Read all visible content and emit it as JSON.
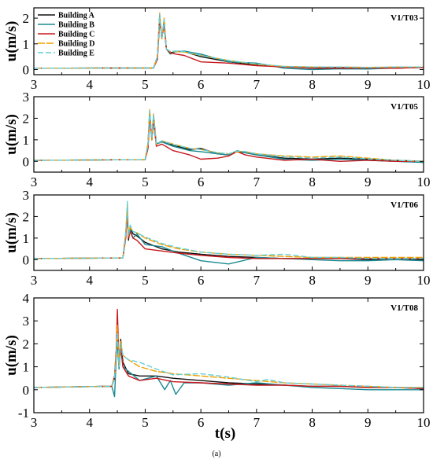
{
  "figure": {
    "xlabel": "t(s)",
    "caption": "(a)",
    "colors": {
      "Building A": "#111111",
      "Building B": "#1a8a92",
      "Building C": "#c8181c",
      "Building D": "#f0a000",
      "Building E": "#63cfd6"
    }
  },
  "chart_data": [
    {
      "type": "line",
      "title": "V1/T03",
      "ylabel": "u(m/s)",
      "xlim": [
        3,
        10
      ],
      "ylim": [
        -0.2,
        2.4
      ],
      "xticks": [
        3,
        4,
        5,
        6,
        7,
        8,
        9,
        10
      ],
      "yticks": [
        0,
        1,
        2
      ],
      "legend": [
        "Building A",
        "Building B",
        "Building C",
        "Building D",
        "Building E"
      ],
      "legend_position": "top-left",
      "grid": false,
      "series": [
        {
          "name": "Building A",
          "x": [
            3,
            5.15,
            5.22,
            5.26,
            5.3,
            5.34,
            5.38,
            5.45,
            5.55,
            5.7,
            6,
            6.5,
            7,
            7.5,
            8,
            8.5,
            9,
            9.5,
            10
          ],
          "y": [
            0.05,
            0.06,
            0.5,
            2.1,
            1.2,
            1.9,
            0.8,
            0.65,
            0.7,
            0.7,
            0.5,
            0.3,
            0.18,
            0.1,
            0.06,
            0.08,
            0.05,
            0.06,
            0.08
          ]
        },
        {
          "name": "Building B",
          "x": [
            3,
            5.15,
            5.22,
            5.26,
            5.3,
            5.34,
            5.38,
            5.45,
            5.55,
            5.7,
            6,
            6.5,
            7,
            7.5,
            8,
            8.5,
            9,
            9.5,
            10
          ],
          "y": [
            0.05,
            0.06,
            0.5,
            2.0,
            1.3,
            1.8,
            0.8,
            0.6,
            0.7,
            0.72,
            0.6,
            0.3,
            0.25,
            0.05,
            0.0,
            0.03,
            0.02,
            0.06,
            0.08
          ]
        },
        {
          "name": "Building C",
          "x": [
            3,
            5.15,
            5.22,
            5.26,
            5.3,
            5.34,
            5.38,
            5.45,
            5.55,
            5.7,
            6,
            6.5,
            7,
            7.5,
            8,
            8.5,
            9,
            9.5,
            10
          ],
          "y": [
            0.05,
            0.06,
            0.4,
            1.9,
            1.3,
            1.7,
            0.8,
            0.65,
            0.6,
            0.55,
            0.3,
            0.25,
            0.15,
            0.1,
            0.05,
            0.05,
            0.06,
            0.05,
            0.08
          ]
        },
        {
          "name": "Building D",
          "x": [
            3,
            5.15,
            5.22,
            5.26,
            5.3,
            5.34,
            5.38,
            5.45,
            5.55,
            5.7,
            6,
            6.5,
            7,
            7.5,
            8,
            8.5,
            9,
            9.5,
            10
          ],
          "y": [
            0.05,
            0.06,
            0.5,
            2.2,
            1.2,
            2.0,
            0.8,
            0.7,
            0.7,
            0.68,
            0.55,
            0.35,
            0.2,
            0.12,
            0.1,
            0.1,
            0.08,
            0.1,
            0.1
          ]
        },
        {
          "name": "Building E",
          "x": [
            3,
            5.15,
            5.22,
            5.26,
            5.3,
            5.34,
            5.38,
            5.45,
            5.55,
            5.7,
            6,
            6.5,
            7,
            7.5,
            8,
            8.5,
            9,
            9.5,
            10
          ],
          "y": [
            0.05,
            0.06,
            0.5,
            2.15,
            1.25,
            1.95,
            0.8,
            0.7,
            0.72,
            0.7,
            0.55,
            0.35,
            0.22,
            0.12,
            0.1,
            0.1,
            0.08,
            0.1,
            0.1
          ]
        }
      ]
    },
    {
      "type": "line",
      "title": "V1/T05",
      "ylabel": "u(m/s)",
      "xlim": [
        3,
        10
      ],
      "ylim": [
        -0.5,
        3
      ],
      "xticks": [
        3,
        4,
        5,
        6,
        7,
        8,
        9,
        10
      ],
      "yticks": [
        0,
        1,
        2,
        3
      ],
      "grid": false,
      "series": [
        {
          "name": "Building A",
          "x": [
            3,
            5.0,
            5.05,
            5.08,
            5.12,
            5.15,
            5.2,
            5.3,
            5.5,
            5.8,
            6.0,
            6.3,
            6.5,
            6.65,
            6.8,
            7.0,
            7.5,
            8.0,
            8.5,
            9.0,
            9.5,
            10
          ],
          "y": [
            0.05,
            0.08,
            0.8,
            2.3,
            1.0,
            2.1,
            0.8,
            0.95,
            0.75,
            0.55,
            0.6,
            0.35,
            0.3,
            0.45,
            0.4,
            0.3,
            0.15,
            0.1,
            0.15,
            0.1,
            0.05,
            0.0
          ]
        },
        {
          "name": "Building B",
          "x": [
            3,
            5.0,
            5.05,
            5.08,
            5.12,
            5.15,
            5.2,
            5.3,
            5.5,
            5.8,
            6.0,
            6.3,
            6.5,
            6.65,
            6.8,
            7.0,
            7.5,
            8.0,
            8.5,
            9.0,
            9.5,
            10
          ],
          "y": [
            0.05,
            0.08,
            0.7,
            2.1,
            1.1,
            2.0,
            0.8,
            0.9,
            0.7,
            0.5,
            0.45,
            0.35,
            0.3,
            0.5,
            0.4,
            0.3,
            0.1,
            0.05,
            0.1,
            0.05,
            0.0,
            -0.05
          ]
        },
        {
          "name": "Building C",
          "x": [
            3,
            5.0,
            5.05,
            5.08,
            5.12,
            5.15,
            5.2,
            5.3,
            5.5,
            5.8,
            6.0,
            6.3,
            6.5,
            6.65,
            6.8,
            7.0,
            7.5,
            8.0,
            8.5,
            9.0,
            9.5,
            10
          ],
          "y": [
            0.05,
            0.08,
            0.6,
            2.0,
            1.0,
            1.9,
            0.7,
            0.8,
            0.5,
            0.3,
            0.1,
            0.15,
            0.25,
            0.45,
            0.3,
            0.2,
            0.05,
            0.1,
            0.0,
            0.05,
            0.0,
            0.0
          ]
        },
        {
          "name": "Building D",
          "x": [
            3,
            5.0,
            5.05,
            5.08,
            5.12,
            5.15,
            5.2,
            5.3,
            5.5,
            5.8,
            6.0,
            6.3,
            6.5,
            6.65,
            6.8,
            7.0,
            7.5,
            8.0,
            8.5,
            9.0,
            9.5,
            10
          ],
          "y": [
            0.05,
            0.08,
            0.8,
            2.4,
            1.0,
            2.2,
            0.8,
            0.95,
            0.8,
            0.6,
            0.55,
            0.4,
            0.35,
            0.45,
            0.45,
            0.35,
            0.25,
            0.2,
            0.25,
            0.15,
            0.05,
            0.0
          ]
        },
        {
          "name": "Building E",
          "x": [
            3,
            5.0,
            5.05,
            5.08,
            5.12,
            5.15,
            5.2,
            5.3,
            5.5,
            5.8,
            6.0,
            6.3,
            6.5,
            6.65,
            6.8,
            7.0,
            7.5,
            8.0,
            8.5,
            9.0,
            9.5,
            10
          ],
          "y": [
            0.05,
            0.08,
            0.8,
            2.35,
            1.05,
            2.15,
            0.8,
            0.95,
            0.78,
            0.6,
            0.55,
            0.4,
            0.35,
            0.48,
            0.45,
            0.35,
            0.22,
            0.15,
            0.2,
            0.12,
            0.05,
            0.0
          ]
        }
      ]
    },
    {
      "type": "line",
      "title": "V1/T06",
      "ylabel": "u(m/s)",
      "xlim": [
        3,
        10
      ],
      "ylim": [
        -0.5,
        3
      ],
      "xticks": [
        3,
        4,
        5,
        6,
        7,
        8,
        9,
        10
      ],
      "yticks": [
        0,
        1,
        2,
        3
      ],
      "grid": false,
      "series": [
        {
          "name": "Building A",
          "x": [
            3,
            4.6,
            4.65,
            4.68,
            4.7,
            4.73,
            4.78,
            4.85,
            5.0,
            5.3,
            5.6,
            6.0,
            6.5,
            7.0,
            7.5,
            8.0,
            8.5,
            9.0,
            9.5,
            10
          ],
          "y": [
            0.05,
            0.08,
            1.2,
            2.3,
            0.9,
            1.5,
            1.2,
            1.1,
            0.8,
            0.5,
            0.35,
            0.25,
            0.15,
            0.1,
            0.05,
            0.05,
            0.05,
            0.0,
            0.0,
            0.0
          ]
        },
        {
          "name": "Building B",
          "x": [
            3,
            4.6,
            4.65,
            4.68,
            4.7,
            4.73,
            4.78,
            4.85,
            5.0,
            5.3,
            5.6,
            6.0,
            6.5,
            7.0,
            7.5,
            8.0,
            8.5,
            9.0,
            9.5,
            10
          ],
          "y": [
            0.05,
            0.08,
            1.1,
            2.2,
            1.0,
            1.4,
            1.0,
            1.2,
            0.7,
            0.6,
            0.3,
            -0.05,
            -0.2,
            0.1,
            0.05,
            0.0,
            -0.05,
            -0.05,
            0.0,
            -0.05
          ]
        },
        {
          "name": "Building C",
          "x": [
            3,
            4.6,
            4.65,
            4.68,
            4.7,
            4.73,
            4.78,
            4.85,
            5.0,
            5.3,
            5.6,
            6.0,
            6.5,
            7.0,
            7.5,
            8.0,
            8.5,
            9.0,
            9.5,
            10
          ],
          "y": [
            0.05,
            0.08,
            1.0,
            2.1,
            1.0,
            1.3,
            1.0,
            0.9,
            0.5,
            0.4,
            0.3,
            0.2,
            0.1,
            0.05,
            0.05,
            0.05,
            0.05,
            0.05,
            0.05,
            0.05
          ]
        },
        {
          "name": "Building D",
          "x": [
            3,
            4.6,
            4.65,
            4.68,
            4.7,
            4.73,
            4.78,
            4.85,
            5.0,
            5.3,
            5.6,
            6.0,
            6.5,
            7.0,
            7.5,
            8.0,
            8.5,
            9.0,
            9.5,
            10
          ],
          "y": [
            0.05,
            0.08,
            1.2,
            2.6,
            1.1,
            1.5,
            1.3,
            1.25,
            1.0,
            0.7,
            0.5,
            0.35,
            0.25,
            0.2,
            0.15,
            0.1,
            0.1,
            0.1,
            0.1,
            0.1
          ]
        },
        {
          "name": "Building E",
          "x": [
            3,
            4.6,
            4.65,
            4.68,
            4.7,
            4.73,
            4.78,
            4.85,
            5.0,
            5.3,
            5.6,
            6.0,
            6.5,
            7.0,
            7.5,
            8.0,
            8.5,
            9.0,
            9.5,
            10
          ],
          "y": [
            0.05,
            0.08,
            1.2,
            2.7,
            1.1,
            1.6,
            1.3,
            1.25,
            1.05,
            0.75,
            0.55,
            0.35,
            0.25,
            0.2,
            0.25,
            0.1,
            0.1,
            0.05,
            0.05,
            0.05
          ]
        }
      ]
    },
    {
      "type": "line",
      "title": "V1/T08",
      "ylabel": "u(m/s)",
      "xlim": [
        3,
        10
      ],
      "ylim": [
        -1,
        4
      ],
      "xticks": [
        3,
        4,
        5,
        6,
        7,
        8,
        9,
        10
      ],
      "yticks": [
        -1,
        0,
        1,
        2,
        3,
        4
      ],
      "grid": false,
      "series": [
        {
          "name": "Building A",
          "x": [
            3,
            4.4,
            4.45,
            4.48,
            4.5,
            4.53,
            4.56,
            4.6,
            4.7,
            4.9,
            5.2,
            5.5,
            6.0,
            6.5,
            7.0,
            7.5,
            8.0,
            8.5,
            9.0,
            9.5,
            10
          ],
          "y": [
            0.1,
            0.15,
            0.5,
            1.5,
            2.0,
            1.0,
            2.2,
            1.2,
            0.7,
            0.6,
            0.6,
            0.5,
            0.4,
            0.3,
            0.25,
            0.2,
            0.15,
            0.15,
            0.1,
            0.1,
            0.05
          ]
        },
        {
          "name": "Building B",
          "x": [
            3,
            4.4,
            4.45,
            4.48,
            4.5,
            4.53,
            4.56,
            4.6,
            4.7,
            4.9,
            5.2,
            5.35,
            5.45,
            5.55,
            5.7,
            6.0,
            6.5,
            7.0,
            7.5,
            8.0,
            8.5,
            9.0,
            9.5,
            10
          ],
          "y": [
            0.1,
            0.15,
            -0.3,
            1.4,
            2.2,
            0.9,
            1.8,
            1.0,
            0.8,
            0.4,
            0.6,
            0.0,
            0.4,
            -0.2,
            0.3,
            0.3,
            0.2,
            0.3,
            0.2,
            0.1,
            0.05,
            0.0,
            0.0,
            0.0
          ]
        },
        {
          "name": "Building C",
          "x": [
            3,
            4.4,
            4.45,
            4.48,
            4.5,
            4.53,
            4.56,
            4.6,
            4.7,
            4.9,
            5.2,
            5.5,
            6.0,
            6.5,
            7.0,
            7.5,
            8.0,
            8.5,
            9.0,
            9.5,
            10
          ],
          "y": [
            0.1,
            0.15,
            0.6,
            1.8,
            3.5,
            1.0,
            2.0,
            1.0,
            0.6,
            0.4,
            0.5,
            0.35,
            0.3,
            0.25,
            0.2,
            0.2,
            0.15,
            0.15,
            0.1,
            0.1,
            0.05
          ]
        },
        {
          "name": "Building D",
          "x": [
            3,
            4.4,
            4.45,
            4.48,
            4.5,
            4.53,
            4.56,
            4.6,
            4.7,
            4.9,
            5.2,
            5.5,
            6.0,
            6.5,
            7.0,
            7.5,
            8.0,
            8.5,
            9.0,
            9.5,
            10
          ],
          "y": [
            0.1,
            0.15,
            0.5,
            1.6,
            2.8,
            1.0,
            2.1,
            1.5,
            1.3,
            1.0,
            0.8,
            0.7,
            0.6,
            0.5,
            0.4,
            0.3,
            0.25,
            0.2,
            0.15,
            0.1,
            0.1
          ]
        },
        {
          "name": "Building E",
          "x": [
            3,
            4.4,
            4.45,
            4.48,
            4.5,
            4.53,
            4.56,
            4.6,
            4.7,
            4.9,
            5.2,
            5.5,
            6.0,
            6.5,
            7.0,
            7.2,
            7.5,
            8.0,
            8.5,
            9.0,
            9.5,
            10
          ],
          "y": [
            0.1,
            0.15,
            0.5,
            1.5,
            2.5,
            1.0,
            2.0,
            1.5,
            1.3,
            1.2,
            0.9,
            0.65,
            0.7,
            0.55,
            0.35,
            0.45,
            0.3,
            0.25,
            0.2,
            0.15,
            0.1,
            0.1
          ]
        }
      ]
    }
  ]
}
